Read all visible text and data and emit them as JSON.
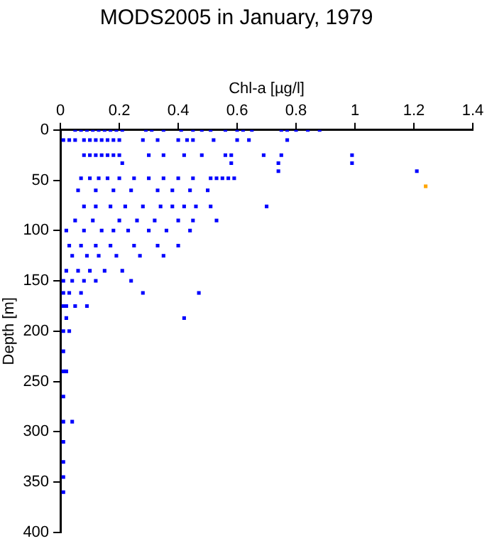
{
  "chart_data": {
    "type": "scatter",
    "title": "MODS2005 in January, 1979",
    "xlabel": "Chl-a [µg/l]",
    "ylabel": "Depth [m]",
    "xlim": [
      0,
      1.4
    ],
    "xticks": [
      0,
      0.2,
      0.4,
      0.6,
      0.8,
      1,
      1.2,
      1.4
    ],
    "ylim": [
      400,
      0
    ],
    "yticks": [
      0,
      50,
      100,
      150,
      200,
      250,
      300,
      350,
      400
    ],
    "grid": false,
    "legend": false,
    "marker": "square",
    "series": [
      {
        "color": "#0000ff",
        "x": [
          0.05,
          0.07,
          0.09,
          0.11,
          0.13,
          0.15,
          0.17,
          0.19,
          0.21,
          0.29,
          0.31,
          0.35,
          0.41,
          0.45,
          0.48,
          0.51,
          0.56,
          0.6,
          0.62,
          0.65,
          0.75,
          0.77,
          0.8,
          0.84,
          0.88,
          0.01,
          0.03,
          0.05,
          0.08,
          0.1,
          0.12,
          0.14,
          0.16,
          0.18,
          0.2,
          0.28,
          0.33,
          0.4,
          0.43,
          0.45,
          0.52,
          0.6,
          0.64,
          0.77,
          0.08,
          0.1,
          0.12,
          0.14,
          0.16,
          0.18,
          0.2,
          0.3,
          0.35,
          0.42,
          0.48,
          0.56,
          0.58,
          0.69,
          0.75,
          0.99,
          0.58,
          0.74,
          0.99,
          0.21,
          0.74,
          1.21,
          0.07,
          0.1,
          0.13,
          0.16,
          0.2,
          0.25,
          0.3,
          0.35,
          0.4,
          0.45,
          0.51,
          0.53,
          0.55,
          0.57,
          0.59,
          0.06,
          0.12,
          0.18,
          0.24,
          0.33,
          0.38,
          0.44,
          0.5,
          0.08,
          0.12,
          0.17,
          0.22,
          0.28,
          0.34,
          0.38,
          0.42,
          0.46,
          0.51,
          0.7,
          0.05,
          0.11,
          0.2,
          0.26,
          0.32,
          0.4,
          0.45,
          0.53,
          0.02,
          0.08,
          0.14,
          0.18,
          0.23,
          0.3,
          0.36,
          0.44,
          0.03,
          0.07,
          0.12,
          0.17,
          0.25,
          0.33,
          0.4,
          0.04,
          0.09,
          0.13,
          0.19,
          0.27,
          0.35,
          0.02,
          0.06,
          0.1,
          0.15,
          0.21,
          0.01,
          0.04,
          0.08,
          0.12,
          0.24,
          0.01,
          0.03,
          0.07,
          0.28,
          0.47,
          0.01,
          0.02,
          0.05,
          0.09,
          0.02,
          0.42,
          0.01,
          0.03,
          0.01,
          0.01,
          0.02,
          0.01,
          0.01,
          0.04,
          0.01,
          0.01,
          0.01,
          0.01
        ],
        "values": [
          0,
          0,
          0,
          0,
          0,
          0,
          0,
          0,
          0,
          0,
          0,
          0,
          0,
          0,
          0,
          0,
          0,
          0,
          0,
          0,
          0,
          0,
          0,
          0,
          0,
          10,
          10,
          10,
          10,
          10,
          10,
          10,
          10,
          10,
          10,
          10,
          10,
          10,
          10,
          10,
          10,
          10,
          10,
          10,
          25,
          25,
          25,
          25,
          25,
          25,
          25,
          25,
          25,
          25,
          25,
          25,
          25,
          25,
          25,
          25,
          33,
          33,
          33,
          33,
          41,
          41,
          48,
          48,
          48,
          48,
          48,
          48,
          48,
          48,
          48,
          48,
          48,
          48,
          48,
          48,
          48,
          60,
          60,
          60,
          60,
          60,
          60,
          60,
          60,
          76,
          76,
          76,
          76,
          76,
          76,
          76,
          76,
          76,
          76,
          76,
          90,
          90,
          90,
          90,
          90,
          90,
          90,
          90,
          100,
          100,
          100,
          100,
          100,
          100,
          100,
          100,
          115,
          115,
          115,
          115,
          115,
          115,
          115,
          125,
          125,
          125,
          125,
          125,
          125,
          140,
          140,
          140,
          140,
          140,
          150,
          150,
          150,
          150,
          150,
          162,
          162,
          162,
          162,
          162,
          175,
          175,
          175,
          175,
          187,
          187,
          200,
          200,
          220,
          240,
          240,
          265,
          290,
          290,
          310,
          330,
          345,
          360
        ]
      },
      {
        "color": "#ffa500",
        "x": [
          1.24
        ],
        "values": [
          56
        ]
      }
    ]
  }
}
